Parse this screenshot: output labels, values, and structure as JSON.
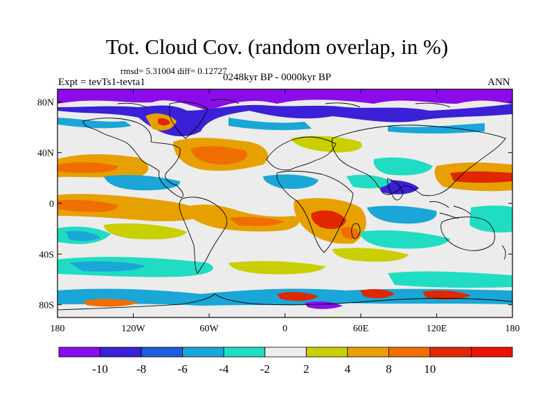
{
  "title": "Tot. Cloud Cov. (random overlap, in %)",
  "stats": "rmsd= 5.31004 diff= 0.12727",
  "experiment": "Expt = tevTs1-tevta1",
  "period": "0248kyr BP - 0000kyr BP",
  "season": "ANN",
  "map": {
    "lon_ticks": [
      "180",
      "120W",
      "60W",
      "0",
      "60E",
      "120E",
      "180"
    ],
    "lat_ticks": [
      "80N",
      "40N",
      "0",
      "40S",
      "80S"
    ],
    "background_color": "#ececec",
    "coastline_color": "#000000"
  },
  "colorbar": {
    "labels": [
      "-10",
      "-8",
      "-6",
      "-4",
      "-2",
      "2",
      "4",
      "8",
      "10"
    ],
    "colors": [
      "#8a0ce8",
      "#3a20d6",
      "#1a5fd9",
      "#1aa6d6",
      "#1fdcc2",
      "#ececec",
      "#c9cf00",
      "#e6a100",
      "#f06e00",
      "#e02800",
      "#e81208"
    ]
  },
  "regions": [
    {
      "name": "arctic-decrease",
      "color": "#8a0ce8"
    },
    {
      "name": "north-america-increase",
      "color": "#f06e00"
    },
    {
      "name": "equatorial-pacific-increase",
      "color": "#e6a100"
    },
    {
      "name": "south-pacific-decrease",
      "color": "#1fdcc2"
    },
    {
      "name": "north-pacific-increase",
      "color": "#e6a100"
    },
    {
      "name": "africa-increase",
      "color": "#e02800"
    },
    {
      "name": "indian-ocean-decrease",
      "color": "#1aa6d6"
    },
    {
      "name": "southern-ocean-bands",
      "color": "#e02800"
    }
  ]
}
